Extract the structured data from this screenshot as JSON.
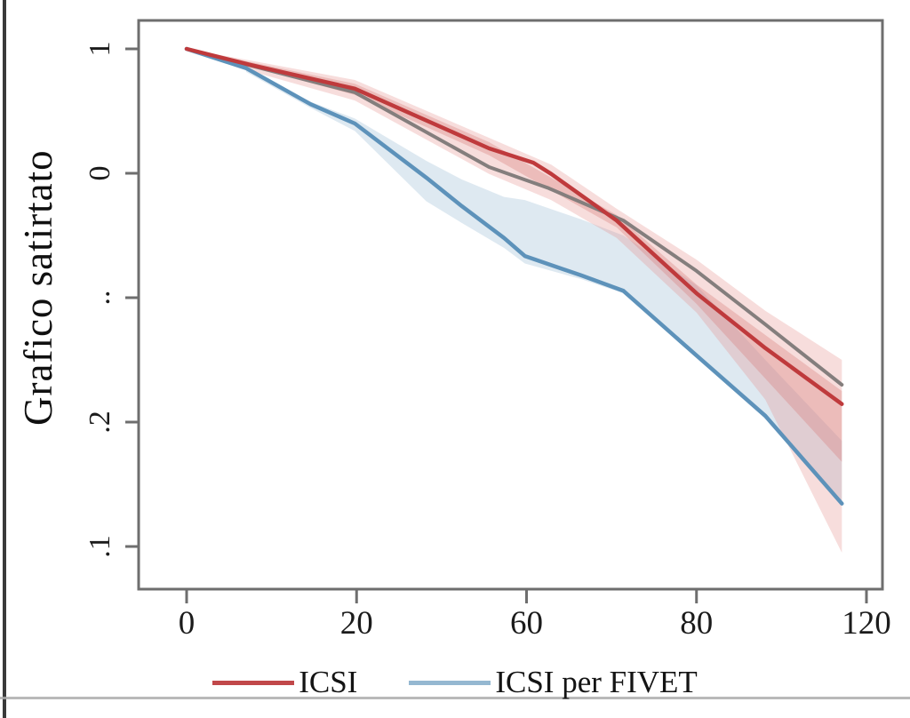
{
  "page": {
    "background": "#ffffff"
  },
  "chart_data": {
    "type": "line",
    "y_axis_title": "Grafico satirtato",
    "x_ticks": [
      "0",
      "20",
      "60",
      "80",
      "120"
    ],
    "x_tick_values": [
      0,
      20,
      60,
      80,
      120
    ],
    "y_ticks": [
      "1",
      "0",
      "..",
      ".2",
      ".1"
    ],
    "y_tick_values": [
      1,
      0.8,
      0.6,
      0.4,
      0.2
    ],
    "x_range": [
      0,
      120
    ],
    "y_range_displayed": [
      0.13,
      1.0
    ],
    "grid": "off",
    "legend_position": "bottom-center",
    "frame_color": "#6e6e6e",
    "tick_label_color": "#1b1b1b",
    "series": [
      {
        "name": "",
        "id": "gray-unlabeled",
        "color": "#847e7d",
        "width": 4,
        "in_legend": false,
        "points": [
          [
            0,
            1.0
          ],
          [
            7.6,
            0.973
          ],
          [
            19.8,
            0.93
          ],
          [
            51.2,
            0.81
          ],
          [
            62.6,
            0.776
          ],
          [
            71.4,
            0.724
          ],
          [
            80,
            0.643
          ],
          [
            96.2,
            0.557
          ],
          [
            114.2,
            0.46
          ]
        ]
      },
      {
        "name": "ICSI per FIVET",
        "id": "icsi-per-fivet",
        "color": "#5d92ba",
        "width": 4.5,
        "in_legend": true,
        "points": [
          [
            0,
            1.0
          ],
          [
            7,
            0.969
          ],
          [
            14.6,
            0.911
          ],
          [
            19.8,
            0.88
          ],
          [
            36.4,
            0.793
          ],
          [
            44.8,
            0.747
          ],
          [
            54.7,
            0.696
          ],
          [
            59.6,
            0.667
          ],
          [
            66.4,
            0.636
          ],
          [
            71.4,
            0.611
          ],
          [
            80,
            0.507
          ],
          [
            96.2,
            0.41
          ],
          [
            114.2,
            0.269
          ]
        ]
      },
      {
        "name": "ICSI",
        "id": "icsi",
        "color": "#bf3a3c",
        "width": 4.5,
        "in_legend": true,
        "points": [
          [
            0,
            1.0
          ],
          [
            7.6,
            0.974
          ],
          [
            19.8,
            0.936
          ],
          [
            51.2,
            0.84
          ],
          [
            60.8,
            0.817
          ],
          [
            62.9,
            0.799
          ],
          [
            70.6,
            0.724
          ],
          [
            80,
            0.607
          ],
          [
            96.2,
            0.519
          ],
          [
            114.2,
            0.429
          ]
        ]
      }
    ],
    "bands": [
      {
        "id": "icsi-per-fivet-ci",
        "color": "#a9c5da",
        "opacity": 0.38,
        "top": [
          [
            7,
            0.966
          ],
          [
            14.6,
            0.915
          ],
          [
            19.8,
            0.888
          ],
          [
            36.4,
            0.82
          ],
          [
            44.8,
            0.79
          ],
          [
            54.7,
            0.762
          ],
          [
            59.6,
            0.757
          ],
          [
            66.4,
            0.726
          ],
          [
            71.4,
            0.7
          ],
          [
            80,
            0.62
          ],
          [
            96.2,
            0.5
          ],
          [
            114.2,
            0.37
          ]
        ],
        "bottom": [
          [
            7,
            0.963
          ],
          [
            14.6,
            0.905
          ],
          [
            19.8,
            0.868
          ],
          [
            36.4,
            0.755
          ],
          [
            44.8,
            0.72
          ],
          [
            54.7,
            0.68
          ],
          [
            59.6,
            0.655
          ],
          [
            66.4,
            0.63
          ],
          [
            71.4,
            0.607
          ],
          [
            80,
            0.503
          ],
          [
            96.2,
            0.406
          ],
          [
            114.2,
            0.265
          ]
        ]
      },
      {
        "id": "icsi-ci-outer",
        "color": "#e38f8b",
        "opacity": 0.3,
        "top": [
          [
            0,
            1.0
          ],
          [
            7.6,
            0.981
          ],
          [
            19.8,
            0.95
          ],
          [
            51.2,
            0.857
          ],
          [
            62.9,
            0.814
          ],
          [
            70.6,
            0.743
          ],
          [
            80,
            0.661
          ],
          [
            96.2,
            0.579
          ],
          [
            114.2,
            0.5
          ]
        ],
        "bottom": [
          [
            0,
            0.997
          ],
          [
            7.6,
            0.964
          ],
          [
            19.8,
            0.917
          ],
          [
            51.2,
            0.799
          ],
          [
            62.9,
            0.757
          ],
          [
            70.6,
            0.696
          ],
          [
            80,
            0.576
          ],
          [
            96.2,
            0.436
          ],
          [
            114.2,
            0.19
          ]
        ]
      },
      {
        "id": "icsi-ci-inner",
        "color": "#d97976",
        "opacity": 0.33,
        "top": [
          [
            0,
            1.0
          ],
          [
            19.8,
            0.944
          ],
          [
            51.2,
            0.85
          ],
          [
            70.6,
            0.733
          ],
          [
            80,
            0.621
          ],
          [
            96.2,
            0.54
          ],
          [
            114.2,
            0.45
          ]
        ],
        "bottom": [
          [
            0,
            0.999
          ],
          [
            19.8,
            0.926
          ],
          [
            51.2,
            0.829
          ],
          [
            70.6,
            0.713
          ],
          [
            80,
            0.59
          ],
          [
            96.2,
            0.47
          ],
          [
            114.2,
            0.336
          ]
        ]
      }
    ]
  },
  "legend": {
    "items": [
      {
        "label": "ICSI",
        "color": "#c1484a"
      },
      {
        "label": "ICSI per FIVET",
        "color": "#95b8d1"
      }
    ]
  }
}
